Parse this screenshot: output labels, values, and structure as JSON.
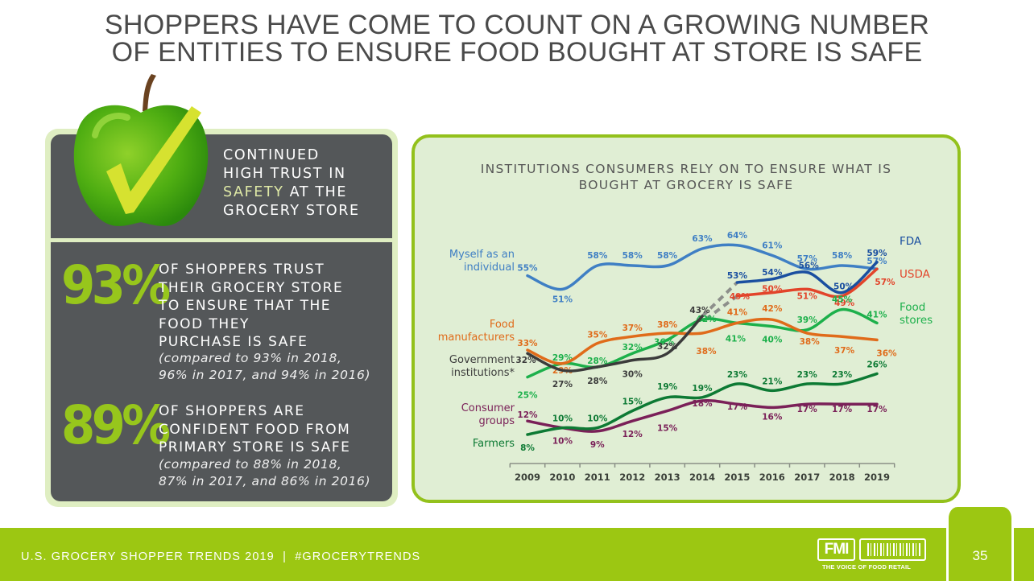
{
  "page": {
    "title_lines": [
      "SHOPPERS HAVE COME TO COUNT ON A GROWING NUMBER",
      "OF ENTITIES TO ENSURE FOOD BOUGHT AT STORE IS SAFE"
    ]
  },
  "left_panel": {
    "heading_lines": [
      "CONTINUED",
      "HIGH TRUST IN"
    ],
    "heading_highlight": "SAFETY",
    "heading_after_highlight": " AT THE",
    "heading_last": "GROCERY STORE",
    "stats": [
      {
        "value": "93%",
        "text_lines": [
          "OF SHOPPERS TRUST",
          "THEIR GROCERY STORE",
          "TO ENSURE THAT THE",
          "FOOD THEY",
          "PURCHASE IS SAFE"
        ],
        "note_lines": [
          "(compared to 93% in 2018,",
          "96% in 2017, and 94% in 2016)"
        ]
      },
      {
        "value": "89%",
        "text_lines": [
          "OF SHOPPERS ARE",
          "CONFIDENT FOOD FROM",
          "PRIMARY STORE IS SAFE"
        ],
        "note_lines": [
          "(compared to 88% in 2018,",
          "87% in 2017, and 86% in 2016)"
        ]
      }
    ],
    "colors": {
      "panel": "#545759",
      "accent": "#97c61c",
      "highlight": "#dfe9a6"
    }
  },
  "chart_data": {
    "type": "line",
    "title_lines": [
      "INSTITUTIONS CONSUMERS RELY ON TO ENSURE WHAT IS",
      "BOUGHT AT GROCERY IS SAFE"
    ],
    "xlabel": "",
    "ylabel": "",
    "x": [
      "2009",
      "2010",
      "2011",
      "2012",
      "2013",
      "2014",
      "2015",
      "2016",
      "2017",
      "2018",
      "2019"
    ],
    "ylim": [
      0,
      70
    ],
    "grid": false,
    "legend": "inline-labels",
    "series": [
      {
        "name": "Myself as an individual",
        "label_lines": [
          "Myself as an",
          "individual"
        ],
        "label_side": "left",
        "color": "#3f7fc4",
        "values": [
          55,
          51,
          58,
          58,
          58,
          63,
          64,
          61,
          57,
          58,
          57
        ]
      },
      {
        "name": "FDA",
        "label_lines": [
          "FDA"
        ],
        "label_side": "right",
        "color": "#1a4fa0",
        "values": [
          null,
          null,
          null,
          null,
          null,
          null,
          53,
          54,
          56,
          50,
          59
        ]
      },
      {
        "name": "USDA",
        "label_lines": [
          "USDA"
        ],
        "label_side": "right",
        "color": "#e2442a",
        "values": [
          null,
          null,
          null,
          null,
          null,
          null,
          49,
          50,
          51,
          49,
          57
        ]
      },
      {
        "name": "Food stores",
        "label_lines": [
          "Food",
          "stores"
        ],
        "label_side": "right",
        "color": "#1db04b",
        "values": [
          25,
          29,
          28,
          32,
          36,
          42,
          41,
          40,
          39,
          45,
          41
        ]
      },
      {
        "name": "Food manufacturers",
        "label_lines": [
          "Food",
          "manufacturers"
        ],
        "label_side": "left",
        "color": "#e06b1a",
        "values": [
          33,
          29,
          35,
          37,
          38,
          38,
          41,
          42,
          38,
          37,
          36
        ]
      },
      {
        "name": "Government institutions*",
        "label_lines": [
          "Government",
          "institutions*"
        ],
        "label_side": "left",
        "color": "#3b3b3b",
        "values": [
          32,
          27,
          28,
          30,
          32,
          43,
          null,
          null,
          null,
          null,
          null
        ]
      },
      {
        "name": "Consumer groups",
        "label_lines": [
          "Consumer",
          "groups"
        ],
        "label_side": "left",
        "color": "#7a2058",
        "values": [
          12,
          10,
          9,
          12,
          15,
          18,
          17,
          16,
          17,
          17,
          17
        ]
      },
      {
        "name": "Farmers",
        "label_lines": [
          "Farmers"
        ],
        "label_side": "left",
        "color": "#0d7a34",
        "values": [
          8,
          10,
          10,
          15,
          19,
          19,
          23,
          21,
          23,
          23,
          26
        ]
      }
    ],
    "annotations": [
      "Government institutions* split into FDA and USDA from 2015 (dashed connector)"
    ]
  },
  "footer": {
    "text": "U.S. GROCERY SHOPPER TRENDS 2019  |  #GROCERYTRENDS",
    "page_number": "35",
    "logo_text": "FMI",
    "logo_tagline": "THE VOICE OF FOOD RETAIL",
    "color": "#9cc712"
  }
}
